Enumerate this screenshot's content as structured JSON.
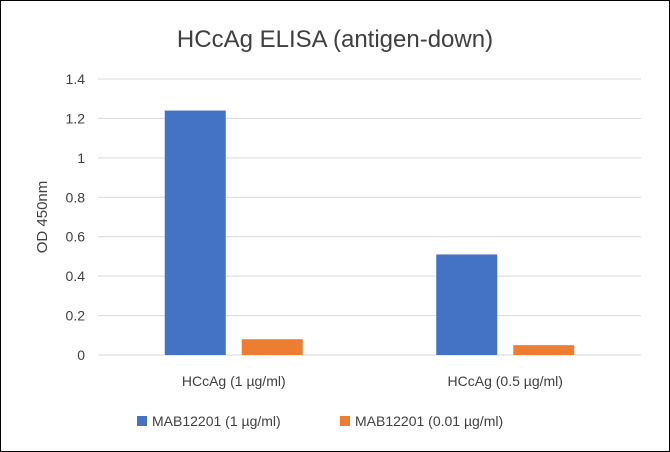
{
  "chart_data": {
    "type": "bar",
    "title": "HCcAg ELISA (antigen-down)",
    "xlabel": "",
    "ylabel": "OD 450nm",
    "categories": [
      "HCcAg (1 µg/ml)",
      "HCcAg (0.5 µg/ml)"
    ],
    "series": [
      {
        "name": "MAB12201 (1 µg/ml)",
        "values": [
          1.24,
          0.51
        ],
        "color": "#4472c4"
      },
      {
        "name": "MAB12201 (0.01 µg/ml)",
        "values": [
          0.08,
          0.05
        ],
        "color": "#ed7d31"
      }
    ],
    "ylim": [
      0,
      1.4
    ],
    "yticks": [
      "0",
      "0.2",
      "0.4",
      "0.6",
      "0.8",
      "1",
      "1.2",
      "1.4"
    ],
    "grid": true,
    "legend": "bottom"
  }
}
